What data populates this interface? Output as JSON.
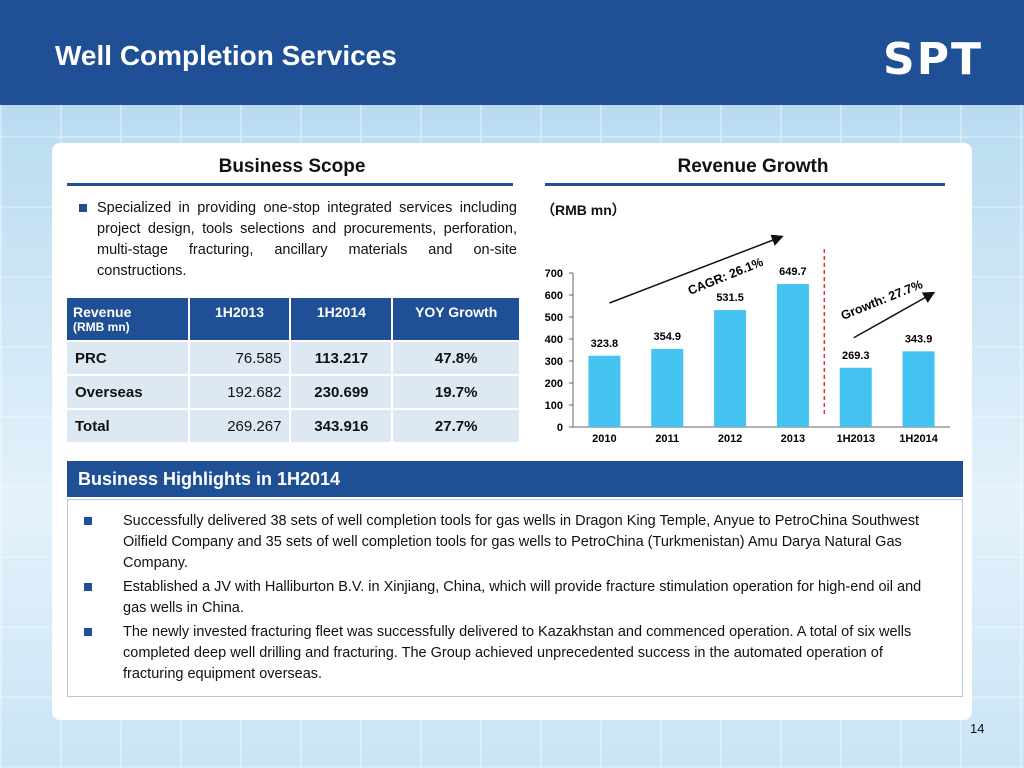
{
  "header": {
    "title": "Well Completion Services",
    "logo": "SPT"
  },
  "scope": {
    "title": "Business Scope",
    "text": "Specialized in providing one-stop integrated services including project design, tools selections and procurements, perforation, multi-stage fracturing, ancillary materials and on-site constructions."
  },
  "table": {
    "headers": [
      "Revenue",
      "1H2013",
      "1H2014",
      "YOY Growth"
    ],
    "header_sub": "(RMB mn)",
    "rows": [
      {
        "label": "PRC",
        "h2013": "76.585",
        "h2014": "113.217",
        "yoy": "47.8%"
      },
      {
        "label": "Overseas",
        "h2013": "192.682",
        "h2014": "230.699",
        "yoy": "19.7%"
      },
      {
        "label": "Total",
        "h2013": "269.267",
        "h2014": "343.916",
        "yoy": "27.7%"
      }
    ]
  },
  "revenue": {
    "title": "Revenue Growth",
    "unit": "（RMB mn）"
  },
  "chart_data": {
    "type": "bar",
    "categories": [
      "2010",
      "2011",
      "2012",
      "2013",
      "1H2013",
      "1H2014"
    ],
    "values": [
      323.8,
      354.9,
      531.5,
      649.7,
      269.3,
      343.9
    ],
    "value_labels": [
      "323.8",
      "354.9",
      "531.5",
      "649.7",
      "269.3",
      "343.9"
    ],
    "yticks": [
      "0",
      "100",
      "200",
      "300",
      "400",
      "500",
      "600",
      "700"
    ],
    "ylim": [
      0,
      700
    ],
    "grid": false,
    "bar_color": "#45c3f0",
    "annotations": {
      "cagr": "CAGR: 26.1%",
      "growth": "Growth: 27.7%"
    }
  },
  "highlights": {
    "title": "Business Highlights in 1H2014",
    "items": [
      "Successfully delivered 38 sets of well completion tools for gas wells in Dragon King Temple, Anyue to PetroChina Southwest Oilfield Company and 35 sets of well completion tools for gas wells to PetroChina (Turkmenistan) Amu Darya Natural Gas Company.",
      "Established a JV with  Halliburton B.V. in Xinjiang, China, which will provide fracture stimulation operation for high-end oil and gas wells in China.",
      "The newly invested fracturing fleet was successfully delivered to Kazakhstan and commenced operation. A total of six wells completed deep well drilling and fracturing. The Group achieved unprecedented success in the automated operation of fracturing equipment overseas."
    ]
  },
  "page_number": "14"
}
